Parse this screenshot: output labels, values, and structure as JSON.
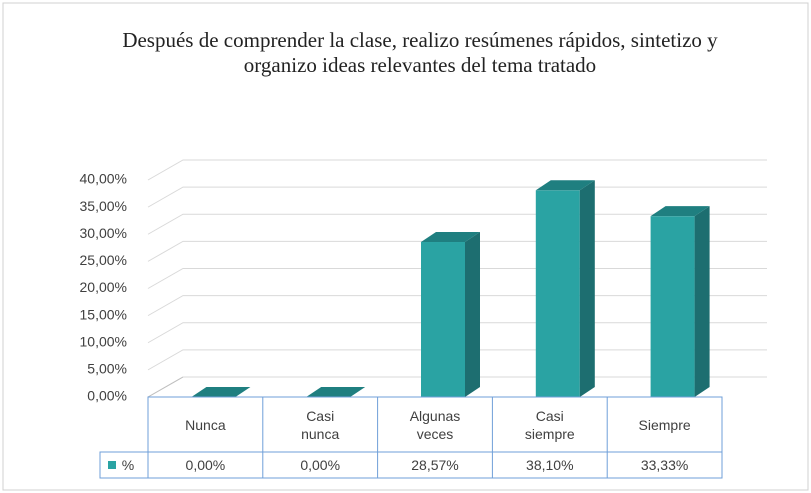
{
  "chart_data": {
    "type": "bar3d",
    "title": "Después de comprender la clase, realizo resúmenes rápidos, sintetizo y organizo ideas relevantes del tema tratado",
    "categories": [
      "Nunca",
      "Casi nunca",
      "Algunas veces",
      "Casi siempre",
      "Siempre"
    ],
    "series": [
      {
        "name": "%",
        "color": "#2aa3a3",
        "values": [
          0,
          0,
          28.57,
          38.1,
          33.33
        ],
        "value_labels": [
          "0,00%",
          "0,00%",
          "28,57%",
          "38,10%",
          "33,33%"
        ]
      }
    ],
    "ylim": [
      0,
      40
    ],
    "yticks": [
      {
        "value": 0,
        "label": "0,00%"
      },
      {
        "value": 5,
        "label": "5,00%"
      },
      {
        "value": 10,
        "label": "10,00%"
      },
      {
        "value": 15,
        "label": "15,00%"
      },
      {
        "value": 20,
        "label": "20,00%"
      },
      {
        "value": 25,
        "label": "25,00%"
      },
      {
        "value": 30,
        "label": "30,00%"
      },
      {
        "value": 35,
        "label": "35,00%"
      },
      {
        "value": 40,
        "label": "40,00%"
      }
    ],
    "grid": true,
    "data_table": true
  }
}
